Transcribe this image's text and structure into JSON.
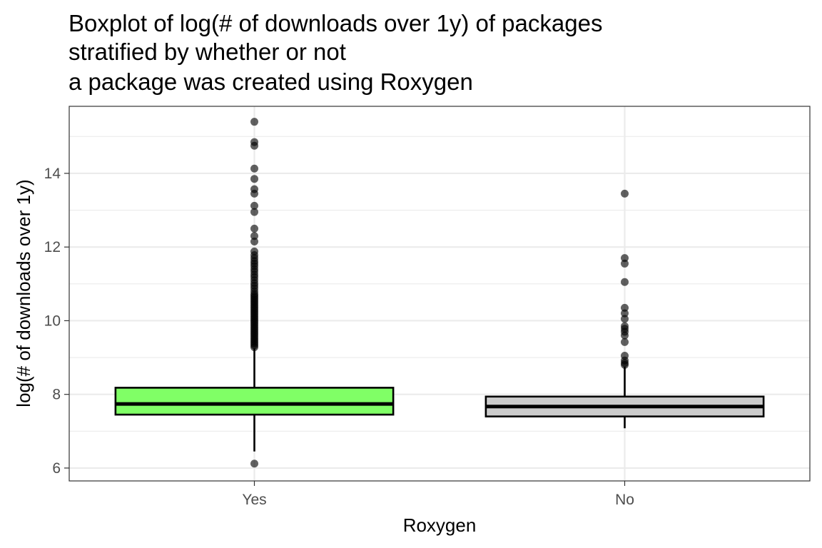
{
  "chart_data": {
    "type": "boxplot",
    "title": [
      "Boxplot of log(# of downloads over 1y) of packages",
      "stratified by whether or not",
      "a package was created using Roxygen"
    ],
    "xlabel": "Roxygen",
    "ylabel": "log(# of downloads over 1y)",
    "ylim": [
      5.65,
      15.82
    ],
    "yticks": [
      6,
      8,
      10,
      12,
      14
    ],
    "grid": true,
    "legend": "none",
    "categories": [
      "Yes",
      "No"
    ],
    "boxes": [
      {
        "category": "Yes",
        "color": "#80ff66",
        "whisker_low": 6.45,
        "q1": 7.45,
        "median": 7.74,
        "q3": 8.18,
        "whisker_high": 9.25,
        "outliers": [
          6.12,
          9.28,
          9.33,
          9.38,
          9.43,
          9.48,
          9.53,
          9.58,
          9.63,
          9.68,
          9.73,
          9.78,
          9.83,
          9.88,
          9.93,
          9.98,
          10.03,
          10.08,
          10.13,
          10.18,
          10.23,
          10.28,
          10.33,
          10.38,
          10.43,
          10.48,
          10.53,
          10.58,
          10.63,
          10.68,
          10.73,
          10.8,
          10.88,
          10.95,
          11.02,
          11.1,
          11.18,
          11.25,
          11.33,
          11.4,
          11.48,
          11.55,
          11.62,
          11.7,
          11.78,
          11.88,
          12.15,
          12.3,
          12.5,
          12.95,
          13.12,
          13.45,
          13.57,
          13.85,
          14.13,
          14.75,
          14.85,
          15.4
        ]
      },
      {
        "category": "No",
        "color": "#cccccc",
        "whisker_low": 7.08,
        "q1": 7.4,
        "median": 7.67,
        "q3": 7.94,
        "whisker_high": 8.75,
        "outliers": [
          8.8,
          8.85,
          8.92,
          9.05,
          9.42,
          9.6,
          9.7,
          9.78,
          9.85,
          10.05,
          10.2,
          10.35,
          11.05,
          11.55,
          11.7,
          13.45
        ]
      }
    ]
  }
}
